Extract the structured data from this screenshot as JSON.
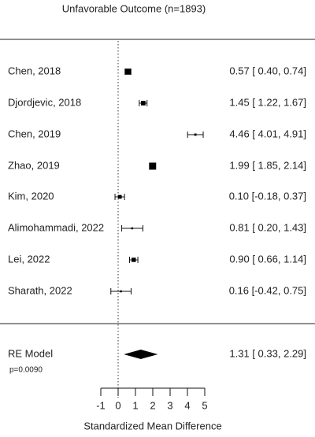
{
  "chart_data": {
    "type": "forest",
    "title": "Unfavorable Outcome (n=1893)",
    "xlabel": "Standardized Mean Difference",
    "ylabel": "",
    "xlim": [
      -1,
      5
    ],
    "xticks": [
      -1,
      0,
      1,
      2,
      3,
      4,
      5
    ],
    "xtick_labels": [
      "-1",
      "0",
      "1",
      "2",
      "3",
      "4",
      "5"
    ],
    "reference_line": 0,
    "studies": [
      {
        "label": "Chen, 2018",
        "estimate": 0.57,
        "ci_lower": 0.4,
        "ci_upper": 0.74,
        "ci_text": "0.57 [ 0.40, 0.74]"
      },
      {
        "label": "Djordjevic, 2018",
        "estimate": 1.45,
        "ci_lower": 1.22,
        "ci_upper": 1.67,
        "ci_text": "1.45 [ 1.22, 1.67]"
      },
      {
        "label": "Chen, 2019",
        "estimate": 4.46,
        "ci_lower": 4.01,
        "ci_upper": 4.91,
        "ci_text": "4.46 [ 4.01, 4.91]"
      },
      {
        "label": "Zhao, 2019",
        "estimate": 1.99,
        "ci_lower": 1.85,
        "ci_upper": 2.14,
        "ci_text": "1.99 [ 1.85, 2.14]"
      },
      {
        "label": "Kim, 2020",
        "estimate": 0.1,
        "ci_lower": -0.18,
        "ci_upper": 0.37,
        "ci_text": "0.10 [-0.18, 0.37]"
      },
      {
        "label": "Alimohammadi, 2022",
        "estimate": 0.81,
        "ci_lower": 0.2,
        "ci_upper": 1.43,
        "ci_text": "0.81 [ 0.20, 1.43]"
      },
      {
        "label": "Lei, 2022",
        "estimate": 0.9,
        "ci_lower": 0.66,
        "ci_upper": 1.14,
        "ci_text": "0.90 [ 0.66, 1.14]"
      },
      {
        "label": "Sharath, 2022",
        "estimate": 0.16,
        "ci_lower": -0.42,
        "ci_upper": 0.75,
        "ci_text": "0.16 [-0.42, 0.75]"
      }
    ],
    "summary": {
      "label": "RE Model",
      "estimate": 1.31,
      "ci_lower": 0.33,
      "ci_upper": 2.29,
      "ci_text": "1.31 [ 0.33, 2.29]",
      "p_text": "p=0.0090"
    }
  }
}
